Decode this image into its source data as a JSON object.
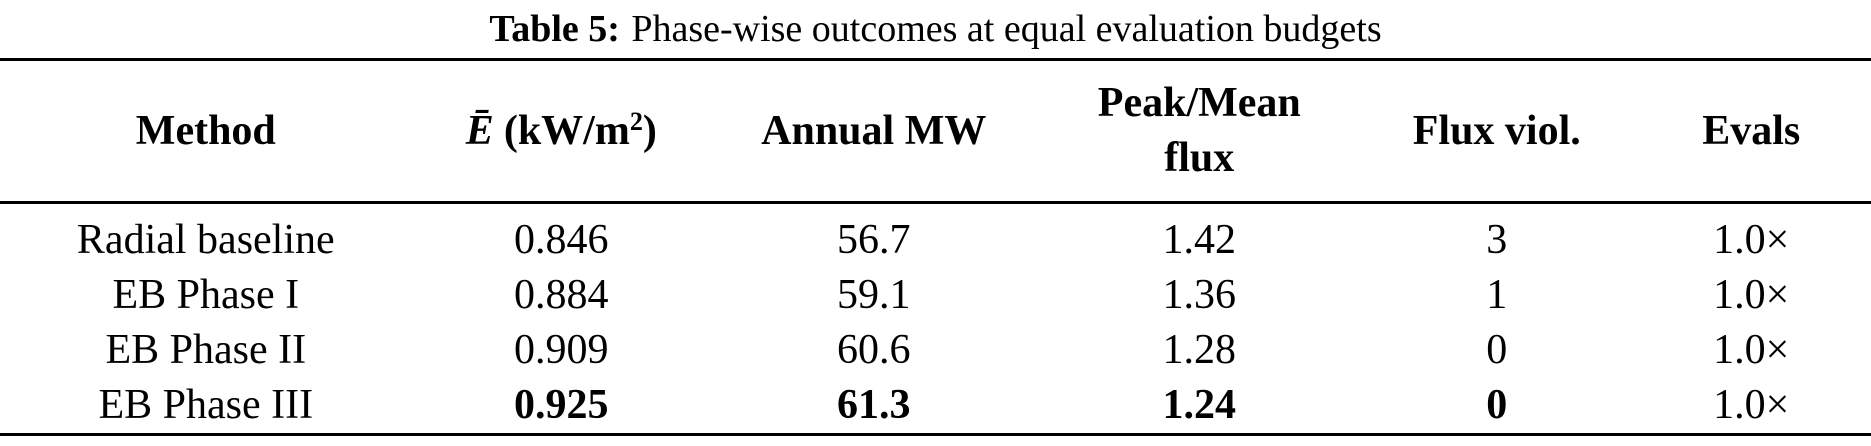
{
  "caption": {
    "label": "Table 5:",
    "text": "Phase-wise outcomes at equal evaluation budgets"
  },
  "table": {
    "headers": {
      "method": "Method",
      "flux_density": {
        "symbol": "Ē",
        "unit_pre": "(kW/m",
        "unit_sup": "2",
        "unit_post": ")"
      },
      "annual_mw": "Annual MW",
      "peak_mean": {
        "line1": "Peak/Mean",
        "line2": "flux"
      },
      "flux_viol": "Flux viol.",
      "evals": "Evals"
    },
    "rows": [
      {
        "cells": [
          "Radial baseline",
          "0.846",
          "56.7",
          "1.42",
          "3",
          "1.0×"
        ]
      },
      {
        "cells": [
          "EB Phase I",
          "0.884",
          "59.1",
          "1.36",
          "1",
          "1.0×"
        ]
      },
      {
        "cells": [
          "EB Phase II",
          "0.909",
          "60.6",
          "1.28",
          "0",
          "1.0×"
        ]
      },
      {
        "cells": [
          "EB Phase III",
          "0.925",
          "61.3",
          "1.24",
          "0",
          "1.0×"
        ]
      }
    ]
  },
  "colors": {
    "text": "#000000",
    "background": "#ffffff",
    "rule": "#000000"
  }
}
